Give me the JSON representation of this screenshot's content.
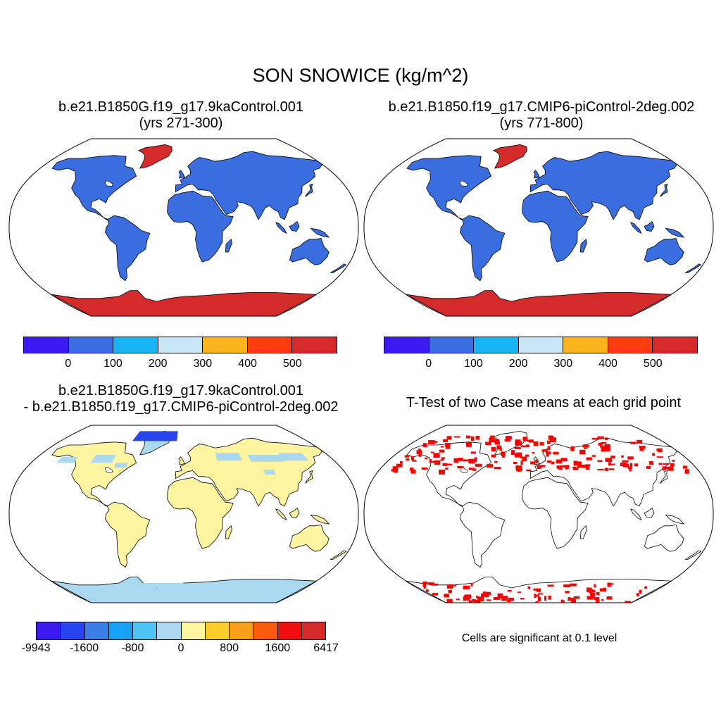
{
  "title": "SON SNOWICE (kg/m^2)",
  "panels": {
    "p1": {
      "title_line1": "b.e21.B1850G.f19_g17.9kaControl.001",
      "title_line2": "(yrs 271-300)"
    },
    "p2": {
      "title_line1": "b.e21.B1850.f19_g17.CMIP6-piControl-2deg.002",
      "title_line2": "(yrs 771-800)"
    },
    "p3": {
      "title_line1": "b.e21.B1850G.f19_g17.9kaControl.001",
      "title_line2": "- b.e21.B1850.f19_g17.CMIP6-piControl-2deg.002"
    },
    "p4": {
      "title": "T-Test of two Case means at each grid point",
      "note": "Cells are significant at 0.1 level"
    }
  },
  "colorbars": {
    "abs": {
      "colors": [
        "#3b1af0",
        "#3a6ee0",
        "#16b4f2",
        "#c8e6f6",
        "#fbb41a",
        "#fb3d10",
        "#d42a2a"
      ],
      "labels": [
        "0",
        "100",
        "200",
        "300",
        "400",
        "500"
      ]
    },
    "diff": {
      "colors": [
        "#3b1af0",
        "#2844ee",
        "#3a7ee6",
        "#17a1f6",
        "#4ec3f4",
        "#aad8ee",
        "#fff4a0",
        "#fbcc2a",
        "#fba01a",
        "#fb5a0d",
        "#f20d0d",
        "#d42a2a"
      ],
      "labels": [
        "-9943",
        "-1600",
        "-800",
        "0",
        "800",
        "1600",
        "6417"
      ]
    }
  },
  "map_fill_colors": {
    "abs_land": "#3a6ee0",
    "abs_ice": "#d42a2a",
    "diff_land": "#fff4a0",
    "diff_ice": "#aad8ee",
    "sig_cells": "#ff0000"
  }
}
